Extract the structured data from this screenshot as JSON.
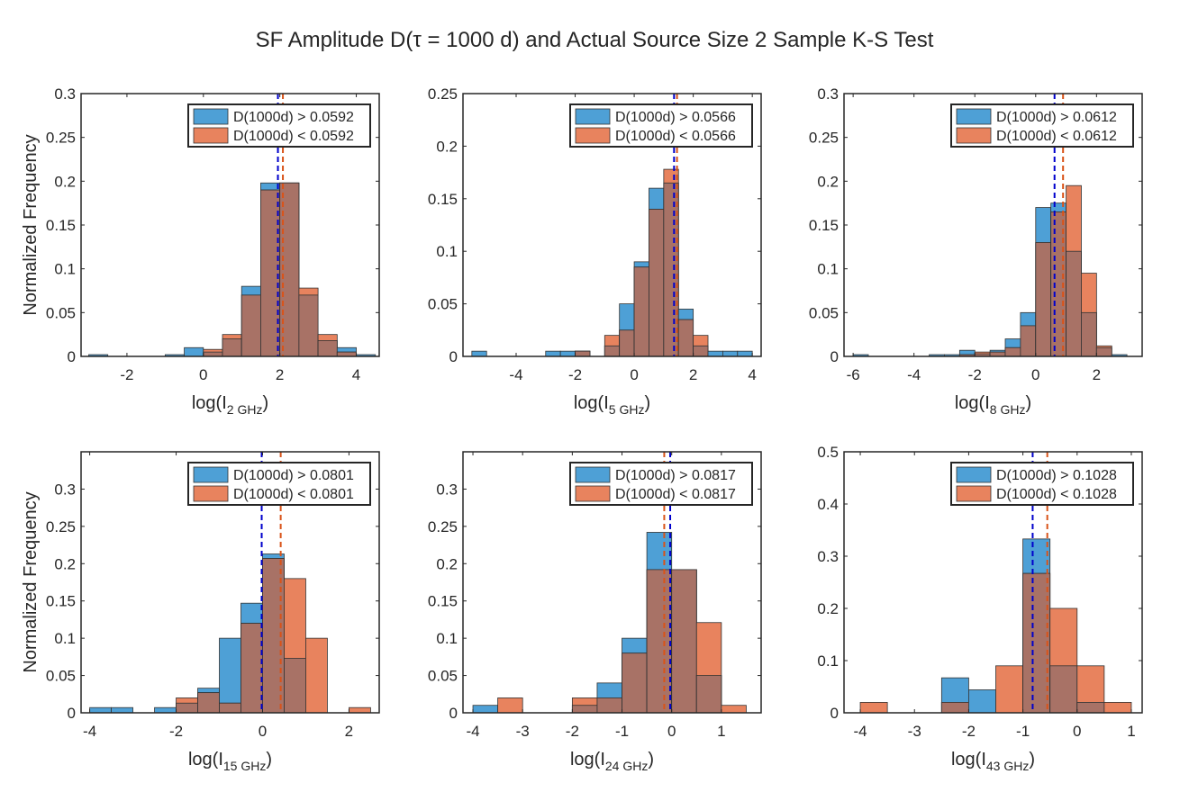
{
  "figure": {
    "title": "SF Amplitude D(τ = 1000 d) and Actual Source Size 2 Sample K-S Test"
  },
  "colors": {
    "high": "#0072BD",
    "high_fill": "#4EA0D6",
    "low": "#D95319",
    "low_fill": "#E8835E",
    "overlap": "#A87266",
    "high_median": "#0000CC",
    "low_median": "#D95319"
  },
  "chart_data": [
    {
      "type": "bar",
      "xlabel_base": "log(I",
      "xlabel_sub": "2 GHz",
      "xlabel_close": ")",
      "ylabel": "Normalized Frequency",
      "xlim": [
        -3.2,
        4.6
      ],
      "ylim": [
        0,
        0.3
      ],
      "xticks": [
        -2,
        0,
        2,
        4
      ],
      "yticks": [
        0,
        0.05,
        0.1,
        0.15,
        0.2,
        0.25,
        0.3
      ],
      "ytick_labels": [
        "0",
        "0.05",
        "0.1",
        "0.15",
        "0.2",
        "0.25",
        "0.3"
      ],
      "edges": [
        -3.0,
        -2.5,
        -2.0,
        -1.5,
        -1.0,
        -0.5,
        0.0,
        0.5,
        1.0,
        1.5,
        2.0,
        2.5,
        3.0,
        3.5,
        4.0,
        4.5
      ],
      "series": [
        {
          "name": "D(1000d) > 0.0592",
          "values": [
            0.002,
            0,
            0,
            0,
            0.002,
            0.01,
            0.005,
            0.02,
            0.08,
            0.198,
            0.198,
            0.07,
            0.018,
            0.01,
            0.002
          ]
        },
        {
          "name": "D(1000d) < 0.0592",
          "values": [
            0,
            0,
            0,
            0,
            0,
            0,
            0.008,
            0.025,
            0.07,
            0.19,
            0.198,
            0.078,
            0.025,
            0.005,
            0
          ]
        }
      ],
      "medians": [
        1.95,
        2.08
      ]
    },
    {
      "type": "bar",
      "xlabel_base": "log(I",
      "xlabel_sub": "5 GHz",
      "xlabel_close": ")",
      "ylabel": "",
      "xlim": [
        -5.8,
        4.3
      ],
      "ylim": [
        0,
        0.25
      ],
      "xticks": [
        -4,
        -2,
        0,
        2,
        4
      ],
      "yticks": [
        0,
        0.05,
        0.1,
        0.15,
        0.2,
        0.25
      ],
      "ytick_labels": [
        "0",
        "0.05",
        "0.1",
        "0.15",
        "0.2",
        "0.25"
      ],
      "edges": [
        -5.5,
        -5.0,
        -4.5,
        -4.0,
        -3.5,
        -3.0,
        -2.5,
        -2.0,
        -1.5,
        -1.0,
        -0.5,
        0.0,
        0.5,
        1.0,
        1.5,
        2.0,
        2.5,
        3.0,
        3.5,
        4.0
      ],
      "series": [
        {
          "name": "D(1000d) > 0.0566",
          "values": [
            0.005,
            0,
            0,
            0,
            0,
            0.005,
            0.005,
            0.005,
            0,
            0.01,
            0.05,
            0.09,
            0.16,
            0.165,
            0.045,
            0.01,
            0.005,
            0.005,
            0.005
          ]
        },
        {
          "name": "D(1000d) < 0.0566",
          "values": [
            0,
            0,
            0,
            0,
            0,
            0,
            0,
            0.005,
            0,
            0.02,
            0.025,
            0.085,
            0.14,
            0.178,
            0.035,
            0.02,
            0,
            0,
            0
          ]
        }
      ],
      "medians": [
        1.35,
        1.45
      ]
    },
    {
      "type": "bar",
      "xlabel_base": "log(I",
      "xlabel_sub": "8 GHz",
      "xlabel_close": ")",
      "ylabel": "",
      "xlim": [
        -6.3,
        3.5
      ],
      "ylim": [
        0,
        0.3
      ],
      "xticks": [
        -6,
        -4,
        -2,
        0,
        2
      ],
      "yticks": [
        0,
        0.05,
        0.1,
        0.15,
        0.2,
        0.25,
        0.3
      ],
      "ytick_labels": [
        "0",
        "0.05",
        "0.1",
        "0.15",
        "0.2",
        "0.25",
        "0.3"
      ],
      "edges": [
        -6.0,
        -5.5,
        -5.0,
        -4.5,
        -4.0,
        -3.5,
        -3.0,
        -2.5,
        -2.0,
        -1.5,
        -1.0,
        -0.5,
        0.0,
        0.5,
        1.0,
        1.5,
        2.0,
        2.5,
        3.0
      ],
      "series": [
        {
          "name": "D(1000d) > 0.0612",
          "values": [
            0.002,
            0,
            0,
            0,
            0,
            0.002,
            0.002,
            0.007,
            0.003,
            0.007,
            0.02,
            0.05,
            0.17,
            0.175,
            0.12,
            0.05,
            0.01,
            0.002
          ]
        },
        {
          "name": "D(1000d) < 0.0612",
          "values": [
            0,
            0,
            0,
            0,
            0,
            0,
            0,
            0.002,
            0.005,
            0.005,
            0.01,
            0.035,
            0.13,
            0.165,
            0.195,
            0.095,
            0.012,
            0
          ]
        }
      ],
      "medians": [
        0.62,
        0.9
      ]
    },
    {
      "type": "bar",
      "xlabel_base": "log(I",
      "xlabel_sub": "15 GHz",
      "xlabel_close": ")",
      "ylabel": "Normalized Frequency",
      "xlim": [
        -4.2,
        2.7
      ],
      "ylim": [
        0,
        0.35
      ],
      "xticks": [
        -4,
        -2,
        0,
        2
      ],
      "yticks": [
        0,
        0.05,
        0.1,
        0.15,
        0.2,
        0.25,
        0.3
      ],
      "ytick_labels": [
        "0",
        "0.05",
        "0.1",
        "0.15",
        "0.2",
        "0.25",
        "0.3"
      ],
      "edges": [
        -4.0,
        -3.5,
        -3.0,
        -2.5,
        -2.0,
        -1.5,
        -1.0,
        -0.5,
        0.0,
        0.5,
        1.0,
        1.5,
        2.0,
        2.5
      ],
      "series": [
        {
          "name": "D(1000d) > 0.0801",
          "values": [
            0.007,
            0.007,
            0,
            0.007,
            0.013,
            0.033,
            0.1,
            0.147,
            0.213,
            0.073,
            0,
            0,
            0
          ]
        },
        {
          "name": "D(1000d) < 0.0801",
          "values": [
            0,
            0,
            0,
            0,
            0.02,
            0.027,
            0.013,
            0.12,
            0.207,
            0.18,
            0.1,
            0,
            0.007
          ]
        }
      ],
      "medians": [
        -0.02,
        0.42
      ]
    },
    {
      "type": "bar",
      "xlabel_base": "log(I",
      "xlabel_sub": "24 GHz",
      "xlabel_close": ")",
      "ylabel": "",
      "xlim": [
        -4.2,
        1.8
      ],
      "ylim": [
        0,
        0.35
      ],
      "xticks": [
        -4,
        -3,
        -2,
        -1,
        0,
        1
      ],
      "yticks": [
        0,
        0.05,
        0.1,
        0.15,
        0.2,
        0.25,
        0.3
      ],
      "ytick_labels": [
        "0",
        "0.05",
        "0.1",
        "0.15",
        "0.2",
        "0.25",
        "0.3"
      ],
      "edges": [
        -4.0,
        -3.5,
        -3.0,
        -2.5,
        -2.0,
        -1.5,
        -1.0,
        -0.5,
        0.0,
        0.5,
        1.0,
        1.5
      ],
      "series": [
        {
          "name": "D(1000d) > 0.0817",
          "values": [
            0.01,
            0,
            0,
            0,
            0.01,
            0.04,
            0.1,
            0.242,
            0.192,
            0.05,
            0
          ]
        },
        {
          "name": "D(1000d) < 0.0817",
          "values": [
            0,
            0.02,
            0,
            0,
            0.02,
            0.02,
            0.08,
            0.192,
            0.192,
            0.121,
            0.01
          ]
        }
      ],
      "medians": [
        -0.03,
        -0.15
      ]
    },
    {
      "type": "bar",
      "xlabel_base": "log(I",
      "xlabel_sub": "43 GHz",
      "xlabel_close": ")",
      "ylabel": "",
      "xlim": [
        -4.3,
        1.2
      ],
      "ylim": [
        0,
        0.5
      ],
      "xticks": [
        -4,
        -3,
        -2,
        -1,
        0,
        1
      ],
      "yticks": [
        0,
        0.1,
        0.2,
        0.3,
        0.4,
        0.5
      ],
      "ytick_labels": [
        "0",
        "0.1",
        "0.2",
        "0.3",
        "0.4",
        "0.5"
      ],
      "edges": [
        -4.0,
        -3.5,
        -3.0,
        -2.5,
        -2.0,
        -1.5,
        -1.0,
        -0.5,
        0.0,
        0.5,
        1.0
      ],
      "series": [
        {
          "name": "D(1000d) > 0.1028",
          "values": [
            0,
            0,
            0,
            0.067,
            0.044,
            0,
            0.333,
            0.09,
            0.02,
            0
          ]
        },
        {
          "name": "D(1000d) < 0.1028",
          "values": [
            0.02,
            0,
            0,
            0.02,
            0,
            0.09,
            0.267,
            0.2,
            0.09,
            0.02
          ]
        }
      ],
      "medians": [
        -0.82,
        -0.55
      ]
    }
  ]
}
